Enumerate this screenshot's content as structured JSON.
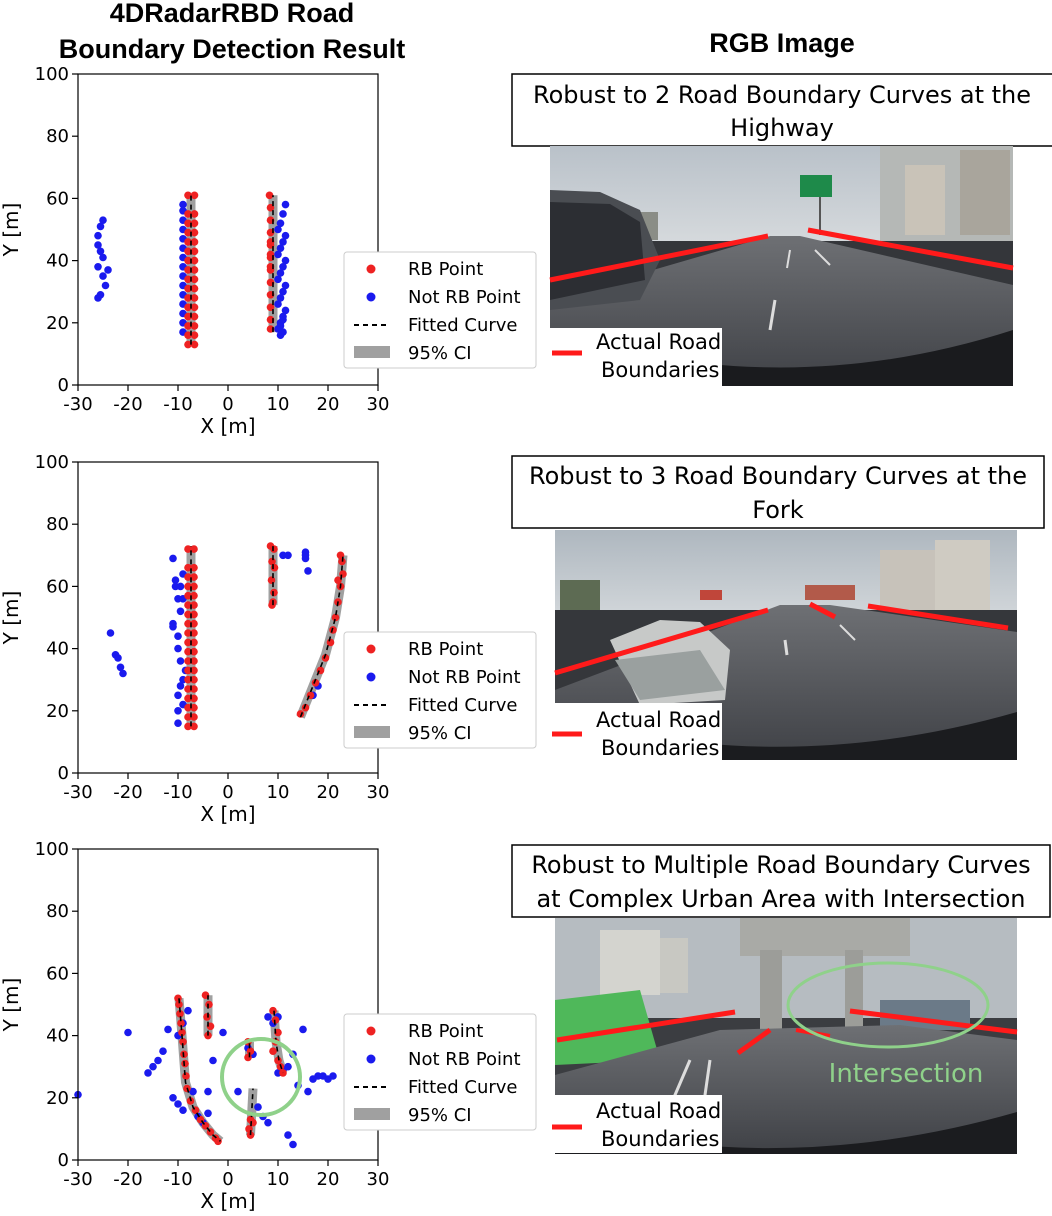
{
  "header": {
    "left_title_line1": "4DRadarRBD Road",
    "left_title_line2": "Boundary Detection Result",
    "right_title": "RGB Image"
  },
  "legend": {
    "rb_point": "RB Point",
    "not_rb_point": "Not RB Point",
    "fitted_curve": "Fitted Curve",
    "ci": "95% CI"
  },
  "photo_legend": {
    "line1": "Actual Road",
    "line2": "Boundaries"
  },
  "colors": {
    "rb_point": "#ee2222",
    "not_rb_point": "#1a1aee",
    "fitted_curve": "#000000",
    "ci_band": "#a0a0a0",
    "road_boundary": "#ff1a1a",
    "intersection": "#8fd18a"
  },
  "panels": [
    {
      "caption_line1": "Robust to 2 Road Boundary Curves at the",
      "caption_line2": "Highway",
      "intersection_label": ""
    },
    {
      "caption_line1": "Robust to 3 Road Boundary Curves at the",
      "caption_line2": "Fork",
      "intersection_label": ""
    },
    {
      "caption_line1": "Robust to Multiple Road Boundary Curves",
      "caption_line2": "at Complex Urban Area with Intersection",
      "intersection_label": "Intersection"
    }
  ],
  "chart_data": [
    {
      "type": "scatter",
      "xlabel": "X [m]",
      "ylabel": "Y [m]",
      "xlim": [
        -30,
        30
      ],
      "ylim": [
        0,
        100
      ],
      "xticks": [
        -30,
        -20,
        -10,
        0,
        10,
        20,
        30
      ],
      "yticks": [
        0,
        20,
        40,
        60,
        80,
        100
      ],
      "grid": false,
      "legend_placement": "right",
      "series": [
        {
          "name": "RB Point",
          "x": [
            -8,
            -8,
            -8,
            -8,
            -8,
            -8,
            -8,
            -8,
            -8,
            -8,
            -8,
            -8,
            -8,
            -8,
            -8,
            -8,
            -6.7,
            -6.7,
            -6.7,
            -6.7,
            -6.7,
            -6.7,
            -6.7,
            -6.7,
            -6.7,
            -6.7,
            -6.7,
            -6.7,
            -6.7,
            -6.7,
            -6.7,
            -6.7,
            8.3,
            8.5,
            8.5,
            8.5,
            8.5,
            8.5,
            8.5,
            8.5,
            8.5,
            8.5,
            8.5,
            8.5,
            8.5,
            8.5,
            8.5
          ],
          "y": [
            13,
            16,
            19,
            22,
            25,
            28,
            31,
            34,
            37,
            40,
            43,
            46,
            49,
            52,
            55,
            61,
            13,
            16,
            19,
            22,
            25,
            28,
            31,
            34,
            37,
            40,
            43,
            46,
            49,
            52,
            55,
            61,
            61,
            57,
            53,
            49,
            45,
            41,
            37,
            33,
            29,
            25,
            21,
            18,
            38,
            42,
            46
          ]
        },
        {
          "name": "Not RB Point",
          "x": [
            -26,
            -25.5,
            -25,
            -26,
            -25.5,
            -25,
            -26,
            -24,
            -25,
            -24.5,
            -26,
            -25.5,
            -9,
            -9,
            -9,
            -9,
            -9,
            -9,
            -9,
            -9,
            -9,
            -9,
            -9,
            -9,
            -9,
            -9,
            -9,
            10,
            10.5,
            11,
            11.5,
            10,
            10.5,
            11,
            11.5,
            10,
            10.5,
            11,
            11.5,
            10,
            10.5,
            11,
            11.5,
            10,
            10.5,
            11,
            11.5,
            10.5,
            11,
            10.5,
            11
          ],
          "y": [
            48,
            51,
            53,
            45,
            43,
            41,
            38,
            37,
            35,
            32,
            28,
            29,
            17,
            20,
            23,
            26,
            29,
            32,
            35,
            38,
            41,
            44,
            47,
            50,
            53,
            56,
            58,
            18,
            20,
            22,
            24,
            26,
            28,
            30,
            32,
            34,
            36,
            38,
            40,
            42,
            44,
            46,
            48,
            50,
            52,
            55,
            58,
            16,
            17,
            19,
            21
          ]
        }
      ],
      "fitted_curves": [
        {
          "x": [
            -7.4,
            -7.4
          ],
          "y": [
            13,
            61
          ]
        },
        {
          "x": [
            9,
            9
          ],
          "y": [
            17,
            61
          ]
        }
      ]
    },
    {
      "type": "scatter",
      "xlabel": "X [m]",
      "ylabel": "Y [m]",
      "xlim": [
        -30,
        30
      ],
      "ylim": [
        0,
        100
      ],
      "xticks": [
        -30,
        -20,
        -10,
        0,
        10,
        20,
        30
      ],
      "yticks": [
        0,
        20,
        40,
        60,
        80,
        100
      ],
      "grid": false,
      "legend_placement": "right",
      "series": [
        {
          "name": "RB Point",
          "x": [
            -8,
            -8,
            -8,
            -8,
            -8,
            -8,
            -8,
            -8,
            -8,
            -8,
            -8,
            -8,
            -8,
            -8,
            -8,
            -8,
            -8,
            -8,
            -8,
            -6.8,
            -6.8,
            -6.8,
            -6.8,
            -6.8,
            -6.8,
            -6.8,
            -6.8,
            -6.8,
            -6.8,
            -6.8,
            -6.8,
            -6.8,
            -6.8,
            -6.8,
            -6.8,
            -6.8,
            -6.8,
            -6.8,
            8.5,
            9.2,
            8.8,
            9.3,
            8.7,
            9.2,
            9,
            8.8,
            14.5,
            15.5,
            16.5,
            17.5,
            18.5,
            19.5,
            20.5,
            21,
            21.5,
            22,
            22.5,
            23,
            22.8,
            22.5,
            22
          ],
          "y": [
            15,
            18,
            21,
            24,
            27,
            30,
            33,
            36,
            39,
            42,
            45,
            48,
            51,
            54,
            57,
            60,
            63,
            66,
            72,
            15,
            18,
            21,
            24,
            27,
            30,
            33,
            36,
            39,
            42,
            45,
            48,
            51,
            54,
            57,
            60,
            63,
            66,
            72,
            73,
            72,
            68,
            66,
            62,
            58,
            55,
            54,
            19,
            21,
            25,
            29,
            33,
            37,
            42,
            46,
            50,
            55,
            60,
            64,
            68,
            70,
            62
          ]
        },
        {
          "name": "Not RB Point",
          "x": [
            -23.5,
            -22.5,
            -22,
            -21.5,
            -21,
            -10,
            -11,
            -9.5,
            -10.5,
            -9,
            -10,
            -11,
            -9.5,
            -10,
            -9,
            -10.5,
            -9.5,
            -10,
            -9,
            -10,
            -11,
            -9,
            -10,
            -9.5,
            -8.5,
            11,
            12,
            15.5,
            15.5,
            16,
            15.5,
            17,
            18
          ],
          "y": [
            45,
            38,
            37,
            34,
            32,
            16,
            48,
            52,
            60,
            56,
            44,
            47,
            36,
            40,
            64,
            62,
            28,
            25,
            22,
            20,
            69,
            30,
            56,
            60,
            33,
            70,
            70,
            71,
            69,
            65,
            70,
            25,
            28
          ]
        }
      ],
      "fitted_curves": [
        {
          "x": [
            -7.4,
            -7.4
          ],
          "y": [
            15,
            73
          ]
        },
        {
          "x": [
            9,
            9
          ],
          "y": [
            54,
            73
          ]
        },
        {
          "x": [
            14.5,
            17,
            19.5,
            21.5,
            22.5,
            23
          ],
          "y": [
            18,
            28,
            38,
            50,
            60,
            70
          ]
        }
      ]
    },
    {
      "type": "scatter",
      "xlabel": "X [m]",
      "ylabel": "Y [m]",
      "xlim": [
        -30,
        30
      ],
      "ylim": [
        0,
        100
      ],
      "xticks": [
        -30,
        -20,
        -10,
        0,
        10,
        20,
        30
      ],
      "yticks": [
        0,
        20,
        40,
        60,
        80,
        100
      ],
      "grid": false,
      "legend_placement": "right",
      "series": [
        {
          "name": "RB Point",
          "x": [
            -10,
            -9.8,
            -9.6,
            -9.4,
            -9.2,
            -9,
            -8.8,
            -8.6,
            -8.4,
            -8.2,
            -7.5,
            -6.5,
            -5.5,
            -4.5,
            -3.5,
            -2.5,
            -2,
            -4.5,
            -3.8,
            -4.2,
            -3.5,
            -4,
            4,
            4.5,
            4,
            4.5,
            4.2,
            4.5,
            5,
            9,
            9.5,
            10,
            9.5,
            9,
            10,
            10.5,
            11
          ],
          "y": [
            52,
            50,
            47,
            44,
            41,
            38,
            34,
            31,
            27,
            23,
            19,
            16,
            13,
            11,
            9,
            7,
            6,
            53,
            50,
            46,
            43,
            40,
            38,
            35,
            33,
            13,
            10,
            8,
            12,
            48,
            45,
            41,
            38,
            35,
            32,
            30,
            28
          ]
        },
        {
          "name": "Not RB Point",
          "x": [
            -30,
            -20,
            -16,
            -15,
            -14,
            -13,
            -12,
            -11,
            -10,
            -9,
            -7,
            -6,
            -5,
            -4,
            -4,
            -3,
            -1,
            2,
            4,
            5,
            6,
            7,
            8,
            9,
            10,
            11,
            12,
            13,
            14,
            15,
            16,
            17,
            18,
            19,
            20,
            21,
            13,
            12,
            10,
            8,
            -8,
            -9,
            -10
          ],
          "y": [
            21,
            41,
            28,
            30,
            32,
            35,
            42,
            20,
            18,
            16,
            22,
            14,
            12,
            15,
            22,
            32,
            41,
            22,
            36,
            34,
            17,
            14,
            12,
            44,
            46,
            29,
            30,
            34,
            24,
            42,
            22,
            26,
            27,
            27,
            26,
            27,
            5,
            8,
            28,
            46,
            48,
            44,
            40
          ]
        }
      ],
      "fitted_curves": [
        {
          "x": [
            -9.8,
            -9.2,
            -8.5,
            -7,
            -5,
            -3,
            -1.5
          ],
          "y": [
            52,
            40,
            25,
            17,
            12,
            8,
            6
          ]
        },
        {
          "x": [
            -4,
            -4
          ],
          "y": [
            40,
            53
          ]
        },
        {
          "x": [
            4.3,
            4.3
          ],
          "y": [
            33,
            38
          ]
        },
        {
          "x": [
            4.5,
            5
          ],
          "y": [
            8,
            23
          ]
        },
        {
          "x": [
            9.2,
            9.6,
            10.2,
            11
          ],
          "y": [
            48,
            38,
            32,
            28
          ]
        }
      ]
    }
  ]
}
